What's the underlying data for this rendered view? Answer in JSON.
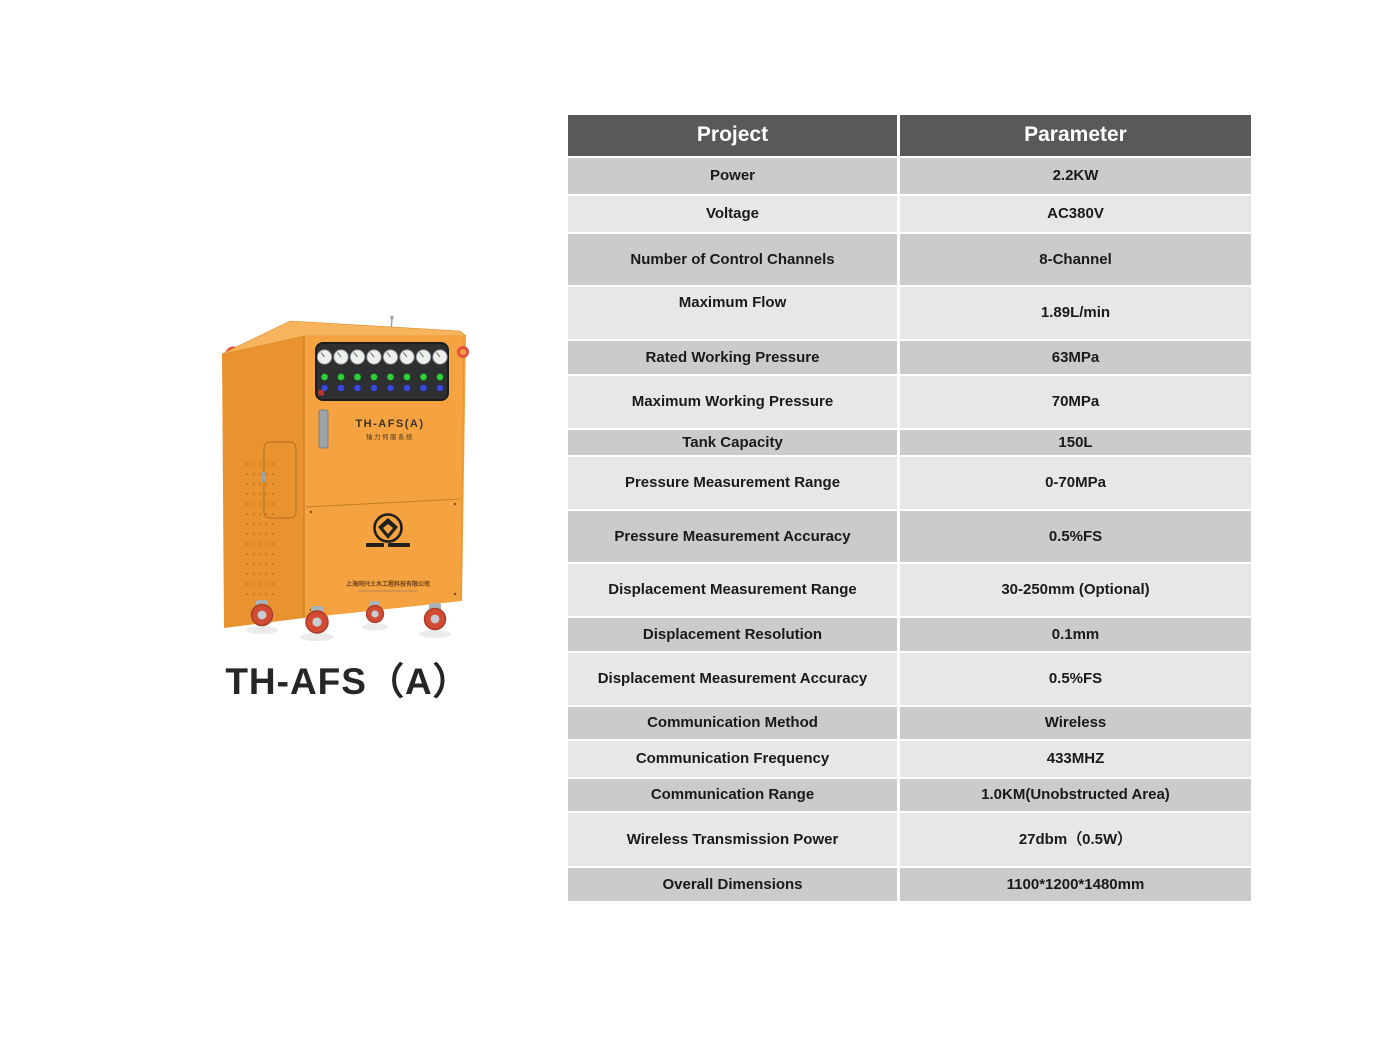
{
  "page": {
    "background": "#ffffff"
  },
  "product": {
    "title": "TH-AFS（A）",
    "machine": {
      "label": "TH-AFS(A)",
      "sublabel": "轴力伺服系统",
      "company_line": "上海同兴土木工程科技有限公司",
      "colors": {
        "body_front": "#f4a340",
        "body_side": "#e8932f",
        "body_top": "#f8b45c",
        "hook_red": "#e2503e",
        "panel_dark": "#2e2f31",
        "gauge_face": "#eef0ee",
        "button_green": "#2fcf3a",
        "button_blue": "#3a48d8",
        "button_red": "#c23327",
        "wheel_red": "#d14c33",
        "wheel_fork": "#aab3ba"
      }
    }
  },
  "table": {
    "colors": {
      "header_bg": "#595959",
      "header_text": "#ffffff",
      "row_dark": "#cbcbcb",
      "row_light": "#e7e7e7",
      "cell_text": "#1a1a1a"
    },
    "header": {
      "col1": "Project",
      "col2": "Parameter"
    },
    "rows": [
      {
        "label": "Power",
        "value": "2.2KW"
      },
      {
        "label": "Voltage",
        "value": "AC380V"
      },
      {
        "label": "Number of Control Channels",
        "value": "8-Channel"
      },
      {
        "label": "Maximum Flow",
        "value": "1.89L/min"
      },
      {
        "label": "Rated Working Pressure",
        "value": "63MPa"
      },
      {
        "label": "Maximum Working Pressure",
        "value": "70MPa"
      },
      {
        "label": "Tank Capacity",
        "value": "150L"
      },
      {
        "label": "Pressure Measurement Range",
        "value": "0-70MPa"
      },
      {
        "label": "Pressure Measurement Accuracy",
        "value": "0.5%FS"
      },
      {
        "label": "Displacement Measurement Range",
        "value": "30-250mm (Optional)"
      },
      {
        "label": "Displacement Resolution",
        "value": "0.1mm"
      },
      {
        "label": "Displacement Measurement Accuracy",
        "value": "0.5%FS"
      },
      {
        "label": "Communication Method",
        "value": "Wireless"
      },
      {
        "label": "Communication Frequency",
        "value": "433MHZ"
      },
      {
        "label": "Communication Range",
        "value": "1.0KM(Unobstructed Area)"
      },
      {
        "label": "Wireless Transmission Power",
        "value": "27dbm（0.5W）"
      },
      {
        "label": "Overall Dimensions",
        "value": "1100*1200*1480mm"
      }
    ]
  }
}
